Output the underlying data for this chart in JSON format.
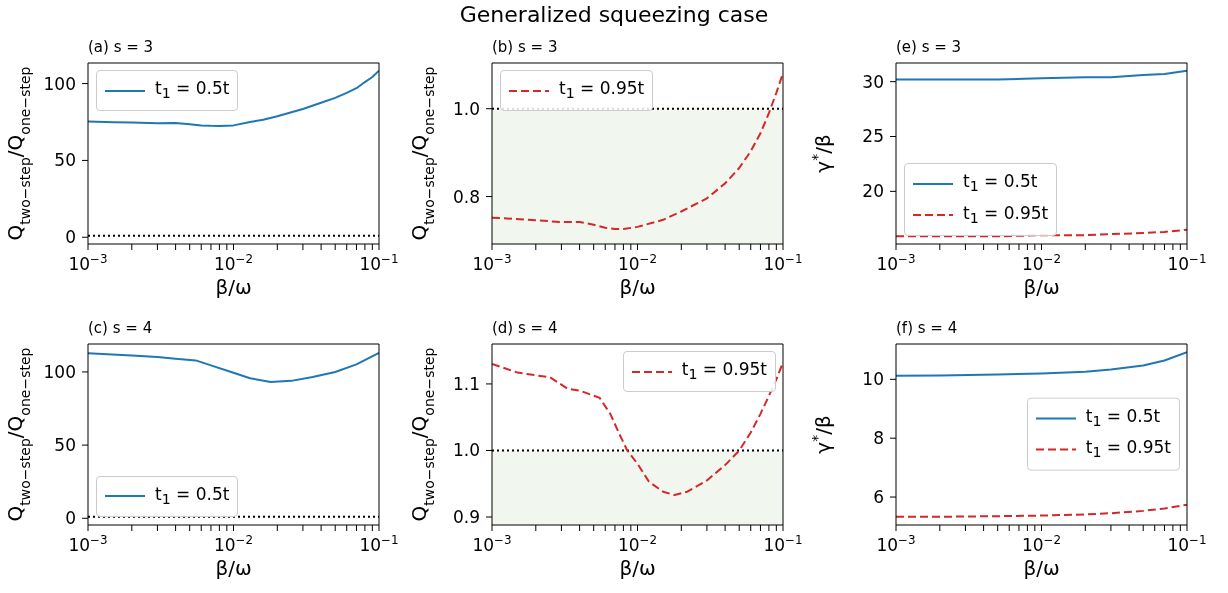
{
  "chart_data": [
    {
      "type": "line",
      "title": "(a) s = 3",
      "xlabel": "β/ω",
      "ylabel": "Q$_{two−step}$/Q$_{one−step}$",
      "log": "x",
      "legend": "top left",
      "xlim": [
        0.001,
        0.1
      ],
      "xticks": [
        {
          "value": 0.001,
          "label": "10$^{−3}$"
        },
        {
          "value": 0.002,
          "label": null
        },
        {
          "value": 0.003,
          "label": null
        },
        {
          "value": 0.004,
          "label": null
        },
        {
          "value": 0.005,
          "label": null
        },
        {
          "value": 0.006,
          "label": null
        },
        {
          "value": 0.007,
          "label": null
        },
        {
          "value": 0.008,
          "label": null
        },
        {
          "value": 0.009,
          "label": null
        },
        {
          "value": 0.01,
          "label": "10$^{−2}$"
        },
        {
          "value": 0.02,
          "label": null
        },
        {
          "value": 0.03,
          "label": null
        },
        {
          "value": 0.04,
          "label": null
        },
        {
          "value": 0.05,
          "label": null
        },
        {
          "value": 0.06,
          "label": null
        },
        {
          "value": 0.07,
          "label": null
        },
        {
          "value": 0.08,
          "label": null
        },
        {
          "value": 0.09,
          "label": null
        },
        {
          "value": 0.1,
          "label": "10$^{−1}$"
        }
      ],
      "ylim": [
        -4.4,
        113.4
      ],
      "yticks": [
        0,
        50,
        100
      ],
      "ref_lines": [
        {
          "axis": "y",
          "value": 1,
          "color": "#000000",
          "line_style": "dotted"
        }
      ],
      "series": [
        {
          "name": "t$_{1}$ = 0.5t",
          "color": "#1f77b4",
          "line_style": "solid",
          "x": [
            0.001,
            0.0015,
            0.002,
            0.003,
            0.004,
            0.005,
            0.006,
            0.007,
            0.008,
            0.01,
            0.013,
            0.016,
            0.02,
            0.03,
            0.04,
            0.05,
            0.06,
            0.07,
            0.08,
            0.09,
            0.1
          ],
          "values": [
            75.4,
            74.8,
            74.6,
            74.2,
            74.3,
            73.6,
            72.8,
            72.5,
            72.4,
            72.8,
            75,
            76.5,
            78.8,
            83.5,
            87.5,
            90.7,
            94,
            97,
            101,
            104.3,
            108.4
          ]
        }
      ]
    },
    {
      "type": "line",
      "title": "Generalized squeezing case",
      "subtitle": "(b) s = 3",
      "xlabel": "β/ω",
      "ylabel": "Q$_{two−step}$/Q$_{one−step}$",
      "log": "x",
      "legend": "top left",
      "xlim": [
        0.001,
        0.1
      ],
      "xticks": [
        {
          "value": 0.001,
          "label": "10$^{−3}$"
        },
        {
          "value": 0.002,
          "label": null
        },
        {
          "value": 0.003,
          "label": null
        },
        {
          "value": 0.004,
          "label": null
        },
        {
          "value": 0.005,
          "label": null
        },
        {
          "value": 0.006,
          "label": null
        },
        {
          "value": 0.007,
          "label": null
        },
        {
          "value": 0.008,
          "label": null
        },
        {
          "value": 0.009,
          "label": null
        },
        {
          "value": 0.01,
          "label": "10$^{−2}$"
        },
        {
          "value": 0.02,
          "label": null
        },
        {
          "value": 0.03,
          "label": null
        },
        {
          "value": 0.04,
          "label": null
        },
        {
          "value": 0.05,
          "label": null
        },
        {
          "value": 0.06,
          "label": null
        },
        {
          "value": 0.07,
          "label": null
        },
        {
          "value": 0.08,
          "label": null
        },
        {
          "value": 0.09,
          "label": null
        },
        {
          "value": 0.1,
          "label": "10$^{−1}$"
        }
      ],
      "ylim": [
        0.692,
        1.104
      ],
      "yticks": [
        0.8,
        {
          "value": 1,
          "label": "1.0"
        }
      ],
      "bands": [
        {
          "axis": "y",
          "from": 0.692,
          "to": 1,
          "color": "#f1f7ef"
        }
      ],
      "ref_lines": [
        {
          "axis": "y",
          "value": 1,
          "color": "#000000",
          "line_style": "dotted"
        }
      ],
      "series": [
        {
          "name": "t$_{1}$ = 0.95t",
          "color": "#d62728",
          "line_style": "dashed",
          "x": [
            0.001,
            0.002,
            0.003,
            0.004,
            0.005,
            0.006,
            0.007,
            0.008,
            0.01,
            0.015,
            0.02,
            0.03,
            0.04,
            0.05,
            0.06,
            0.07,
            0.08,
            0.09,
            0.1
          ],
          "values": [
            0.752,
            0.746,
            0.742,
            0.742,
            0.736,
            0.729,
            0.726,
            0.726,
            0.731,
            0.747,
            0.766,
            0.796,
            0.83,
            0.865,
            0.903,
            0.944,
            0.99,
            1.036,
            1.081
          ]
        }
      ]
    },
    {
      "type": "line",
      "title": "(e) s = 3",
      "xlabel": "β/ω",
      "ylabel": "γ$^{*}$/β",
      "log": "x",
      "legend": "bottom left",
      "xlim": [
        0.001,
        0.1
      ],
      "xticks": [
        {
          "value": 0.001,
          "label": "10$^{−3}$"
        },
        {
          "value": 0.002,
          "label": null
        },
        {
          "value": 0.003,
          "label": null
        },
        {
          "value": 0.004,
          "label": null
        },
        {
          "value": 0.005,
          "label": null
        },
        {
          "value": 0.006,
          "label": null
        },
        {
          "value": 0.007,
          "label": null
        },
        {
          "value": 0.008,
          "label": null
        },
        {
          "value": 0.009,
          "label": null
        },
        {
          "value": 0.01,
          "label": "10$^{−2}$"
        },
        {
          "value": 0.02,
          "label": null
        },
        {
          "value": 0.03,
          "label": null
        },
        {
          "value": 0.04,
          "label": null
        },
        {
          "value": 0.05,
          "label": null
        },
        {
          "value": 0.06,
          "label": null
        },
        {
          "value": 0.07,
          "label": null
        },
        {
          "value": 0.08,
          "label": null
        },
        {
          "value": 0.09,
          "label": null
        },
        {
          "value": 0.1,
          "label": "10$^{−1}$"
        }
      ],
      "ylim": [
        15.2,
        31.7
      ],
      "yticks": [
        20,
        25,
        30
      ],
      "series": [
        {
          "name": "t$_{1}$ = 0.5t",
          "color": "#1f77b4",
          "line_style": "solid",
          "x": [
            0.001,
            0.002,
            0.005,
            0.01,
            0.02,
            0.03,
            0.05,
            0.07,
            0.1
          ],
          "values": [
            30.2,
            30.2,
            30.2,
            30.3,
            30.4,
            30.4,
            30.6,
            30.7,
            31.0
          ]
        },
        {
          "name": "t$_{1}$ = 0.95t",
          "color": "#d62728",
          "line_style": "dashed",
          "x": [
            0.001,
            0.002,
            0.005,
            0.01,
            0.02,
            0.03,
            0.05,
            0.07,
            0.1
          ],
          "values": [
            15.9,
            15.9,
            15.9,
            16.0,
            16.0,
            16.1,
            16.2,
            16.3,
            16.5
          ]
        }
      ]
    },
    {
      "type": "line",
      "title": "(c) s = 4",
      "xlabel": "β/ω",
      "ylabel": "Q$_{two−step}$/Q$_{one−step}$",
      "log": "x",
      "legend": "bottom left",
      "xlim": [
        0.001,
        0.1
      ],
      "xticks": [
        {
          "value": 0.001,
          "label": "10$^{−3}$"
        },
        {
          "value": 0.002,
          "label": null
        },
        {
          "value": 0.003,
          "label": null
        },
        {
          "value": 0.004,
          "label": null
        },
        {
          "value": 0.005,
          "label": null
        },
        {
          "value": 0.006,
          "label": null
        },
        {
          "value": 0.007,
          "label": null
        },
        {
          "value": 0.008,
          "label": null
        },
        {
          "value": 0.009,
          "label": null
        },
        {
          "value": 0.01,
          "label": "10$^{−2}$"
        },
        {
          "value": 0.02,
          "label": null
        },
        {
          "value": 0.03,
          "label": null
        },
        {
          "value": 0.04,
          "label": null
        },
        {
          "value": 0.05,
          "label": null
        },
        {
          "value": 0.06,
          "label": null
        },
        {
          "value": 0.07,
          "label": null
        },
        {
          "value": 0.08,
          "label": null
        },
        {
          "value": 0.09,
          "label": null
        },
        {
          "value": 0.1,
          "label": "10$^{−1}$"
        }
      ],
      "ylim": [
        -4.6,
        119.1
      ],
      "yticks": [
        0,
        50,
        100
      ],
      "ref_lines": [
        {
          "axis": "y",
          "value": 1,
          "color": "#000000",
          "line_style": "dotted"
        }
      ],
      "series": [
        {
          "name": "t$_{1}$ = 0.5t",
          "color": "#1f77b4",
          "line_style": "solid",
          "x": [
            0.001,
            0.002,
            0.003,
            0.004,
            0.0055,
            0.007,
            0.01,
            0.013,
            0.018,
            0.025,
            0.035,
            0.05,
            0.07,
            0.1
          ],
          "values": [
            112.7,
            111.3,
            110.2,
            109,
            107.9,
            104.5,
            99.5,
            95.7,
            93.2,
            93.9,
            96.6,
            100,
            105.2,
            113.1
          ]
        }
      ]
    },
    {
      "type": "line",
      "title": "(d) s = 4",
      "xlabel": "β/ω",
      "ylabel": "Q$_{two−step}$/Q$_{one−step}$",
      "log": "x",
      "legend": "top right",
      "xlim": [
        0.001,
        0.1
      ],
      "xticks": [
        {
          "value": 0.001,
          "label": "10$^{−3}$"
        },
        {
          "value": 0.002,
          "label": null
        },
        {
          "value": 0.003,
          "label": null
        },
        {
          "value": 0.004,
          "label": null
        },
        {
          "value": 0.005,
          "label": null
        },
        {
          "value": 0.006,
          "label": null
        },
        {
          "value": 0.007,
          "label": null
        },
        {
          "value": 0.008,
          "label": null
        },
        {
          "value": 0.009,
          "label": null
        },
        {
          "value": 0.01,
          "label": "10$^{−2}$"
        },
        {
          "value": 0.02,
          "label": null
        },
        {
          "value": 0.03,
          "label": null
        },
        {
          "value": 0.04,
          "label": null
        },
        {
          "value": 0.05,
          "label": null
        },
        {
          "value": 0.06,
          "label": null
        },
        {
          "value": 0.07,
          "label": null
        },
        {
          "value": 0.08,
          "label": null
        },
        {
          "value": 0.09,
          "label": null
        },
        {
          "value": 0.1,
          "label": "10$^{−1}$"
        }
      ],
      "ylim": [
        0.888,
        1.16
      ],
      "yticks": [
        0.9,
        {
          "value": 1,
          "label": "1.0"
        },
        1.1
      ],
      "bands": [
        {
          "axis": "y",
          "from": 0.888,
          "to": 1,
          "color": "#f1f7ef"
        }
      ],
      "ref_lines": [
        {
          "axis": "y",
          "value": 1,
          "color": "#000000",
          "line_style": "dotted"
        }
      ],
      "series": [
        {
          "name": "t$_{1}$ = 0.95t",
          "color": "#d62728",
          "line_style": "dashed",
          "x": [
            0.001,
            0.0015,
            0.002,
            0.0025,
            0.0033,
            0.004,
            0.0055,
            0.0065,
            0.0075,
            0.0085,
            0.01,
            0.012,
            0.015,
            0.018,
            0.022,
            0.03,
            0.04,
            0.05,
            0.06,
            0.07,
            0.08,
            0.09,
            0.1
          ],
          "values": [
            1.13,
            1.117,
            1.113,
            1.11,
            1.093,
            1.09,
            1.079,
            1.055,
            1.025,
            1,
            0.98,
            0.953,
            0.938,
            0.933,
            0.938,
            0.955,
            0.978,
            1,
            1.027,
            1.055,
            1.082,
            1.107,
            1.132
          ]
        }
      ]
    },
    {
      "type": "line",
      "title": "(f) s = 4",
      "xlabel": "β/ω",
      "ylabel": "γ$^{*}$/β",
      "log": "x",
      "legend": "right",
      "xlim": [
        0.001,
        0.1
      ],
      "xticks": [
        {
          "value": 0.001,
          "label": "10$^{−3}$"
        },
        {
          "value": 0.002,
          "label": null
        },
        {
          "value": 0.003,
          "label": null
        },
        {
          "value": 0.004,
          "label": null
        },
        {
          "value": 0.005,
          "label": null
        },
        {
          "value": 0.006,
          "label": null
        },
        {
          "value": 0.007,
          "label": null
        },
        {
          "value": 0.008,
          "label": null
        },
        {
          "value": 0.009,
          "label": null
        },
        {
          "value": 0.01,
          "label": "10$^{−2}$"
        },
        {
          "value": 0.02,
          "label": null
        },
        {
          "value": 0.03,
          "label": null
        },
        {
          "value": 0.04,
          "label": null
        },
        {
          "value": 0.05,
          "label": null
        },
        {
          "value": 0.06,
          "label": null
        },
        {
          "value": 0.07,
          "label": null
        },
        {
          "value": 0.08,
          "label": null
        },
        {
          "value": 0.09,
          "label": null
        },
        {
          "value": 0.1,
          "label": "10$^{−1}$"
        }
      ],
      "ylim": [
        5.05,
        11.2
      ],
      "yticks": [
        6,
        8,
        10
      ],
      "series": [
        {
          "name": "t$_{1}$ = 0.5t",
          "color": "#1f77b4",
          "line_style": "solid",
          "x": [
            0.001,
            0.002,
            0.005,
            0.01,
            0.02,
            0.03,
            0.05,
            0.07,
            0.1
          ],
          "values": [
            10.12,
            10.13,
            10.16,
            10.2,
            10.26,
            10.33,
            10.47,
            10.64,
            10.92
          ]
        },
        {
          "name": "t$_{1}$ = 0.95t",
          "color": "#d62728",
          "line_style": "dashed",
          "x": [
            0.001,
            0.002,
            0.005,
            0.01,
            0.02,
            0.03,
            0.05,
            0.07,
            0.1
          ],
          "values": [
            5.33,
            5.33,
            5.35,
            5.37,
            5.41,
            5.45,
            5.53,
            5.61,
            5.74
          ]
        }
      ]
    }
  ]
}
